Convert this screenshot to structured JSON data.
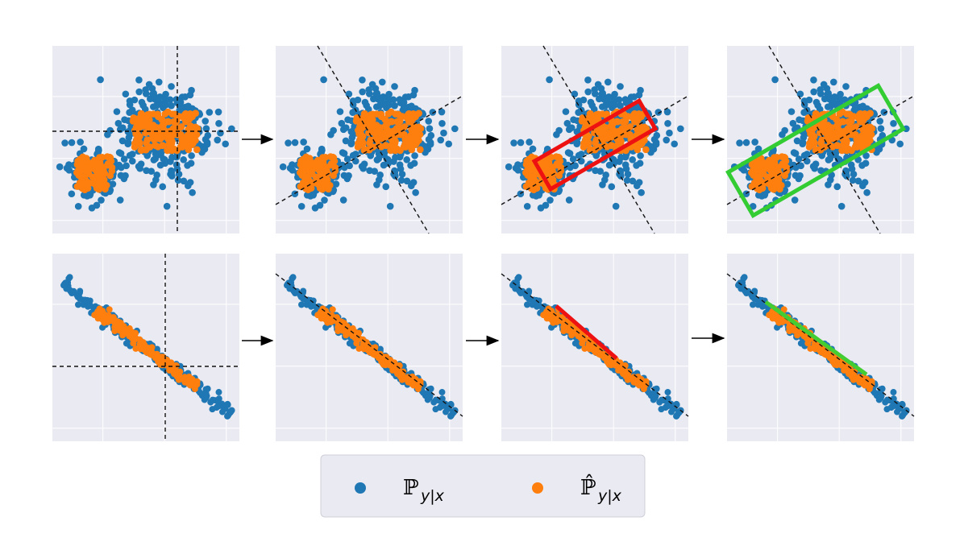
{
  "legend": {
    "items": [
      {
        "symbol": "ℙ",
        "subscript": "y|x",
        "color": "#1f77b4"
      },
      {
        "symbol": "ℙ̂",
        "subscript": "y|x",
        "color": "#ff7f0e"
      }
    ]
  }
}
